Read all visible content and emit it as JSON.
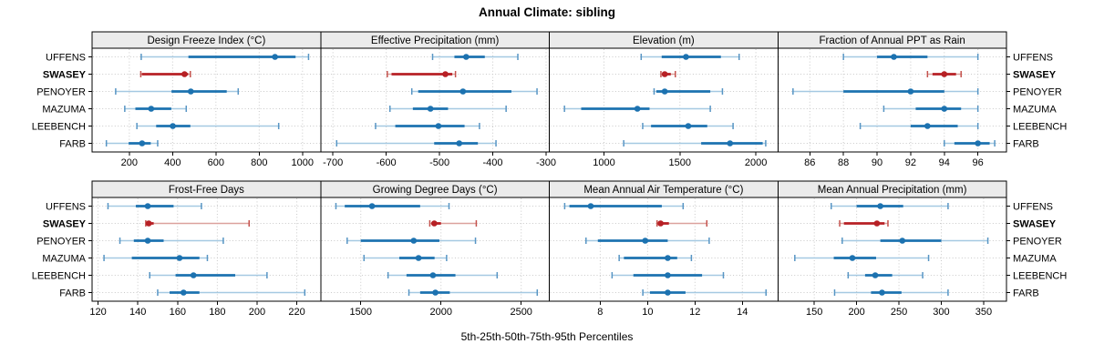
{
  "title": "Annual Climate: sibling",
  "xlabel": "5th-25th-50th-75th-95th Percentiles",
  "sites": [
    "UFFENS",
    "SWASEY",
    "PENOYER",
    "MAZUMA",
    "LEEBENCH",
    "FARB"
  ],
  "highlight_site": "SWASEY",
  "colors": {
    "background": "#ffffff",
    "normal": "#1c72b0",
    "normal_light": "#a5c9e2",
    "normal_cap": "#5795c4",
    "highlight": "#b72025",
    "highlight_light": "#dba19d",
    "highlight_cap": "#c4524d",
    "strip_bg": "#ebebeb",
    "grid": "#c9c9c9",
    "border": "#000000"
  },
  "chart_data": {
    "type": "dotplot-percentiles",
    "layout_rows": 2,
    "layout_cols": 4,
    "percentiles": [
      5,
      25,
      50,
      75,
      95
    ],
    "legend": "5th-25th-50th-75th-95th Percentiles",
    "sites": [
      "UFFENS",
      "SWASEY",
      "PENOYER",
      "MAZUMA",
      "LEEBENCH",
      "FARB"
    ],
    "panels": [
      {
        "title": "Design Freeze Index (°C)",
        "xlim": [
          28,
          1084
        ],
        "ticks": [
          200,
          400,
          600,
          800,
          1000
        ],
        "values": [
          [
            255,
            473,
            873,
            968,
            1028
          ],
          [
            253,
            258,
            455,
            472,
            482
          ],
          [
            137,
            395,
            484,
            650,
            703
          ],
          [
            179,
            228,
            301,
            394,
            463
          ],
          [
            235,
            324,
            401,
            482,
            890
          ],
          [
            94,
            197,
            259,
            299,
            331
          ]
        ]
      },
      {
        "title": "Effective Precipitation (mm)",
        "xlim": [
          -723,
          -294
        ],
        "ticks": [
          -700,
          -600,
          -500,
          -400,
          -300
        ],
        "values": [
          [
            -513,
            -472,
            -450,
            -415,
            -353
          ],
          [
            -598,
            -590,
            -489,
            -476,
            -470
          ],
          [
            -552,
            -540,
            -456,
            -365,
            -317
          ],
          [
            -593,
            -550,
            -517,
            -484,
            -375
          ],
          [
            -620,
            -583,
            -502,
            -453,
            -425
          ],
          [
            -693,
            -510,
            -463,
            -428,
            -394
          ]
        ]
      },
      {
        "title": "Elevation (m)",
        "xlim": [
          640,
          2145
        ],
        "ticks": [
          1000,
          1500,
          2000
        ],
        "values": [
          [
            1245,
            1380,
            1540,
            1770,
            1890
          ],
          [
            1375,
            1385,
            1400,
            1440,
            1470
          ],
          [
            1330,
            1345,
            1400,
            1700,
            1780
          ],
          [
            740,
            850,
            1220,
            1300,
            1700
          ],
          [
            1255,
            1310,
            1555,
            1680,
            1850
          ],
          [
            1130,
            1640,
            1830,
            2045,
            2065
          ]
        ]
      },
      {
        "title": "Fraction of Annual PPT as Rain",
        "xlim": [
          84.1,
          97.7
        ],
        "ticks": [
          86,
          88,
          90,
          92,
          94,
          96
        ],
        "values": [
          [
            88,
            90,
            91,
            93,
            96
          ],
          [
            93,
            93.3,
            94,
            94.7,
            95
          ],
          [
            85,
            88,
            92,
            94,
            96
          ],
          [
            90.4,
            92.3,
            94,
            95,
            96
          ],
          [
            89,
            92,
            93,
            94.8,
            96
          ],
          [
            94,
            94.6,
            96,
            96.7,
            97
          ]
        ]
      },
      {
        "title": "Frost-Free Days",
        "xlim": [
          117,
          232
        ],
        "ticks": [
          120,
          140,
          160,
          180,
          200,
          220
        ],
        "values": [
          [
            125,
            139,
            145,
            158,
            172
          ],
          [
            144,
            144.5,
            145.5,
            148,
            196
          ],
          [
            131,
            138,
            145,
            153,
            183
          ],
          [
            123,
            137,
            161,
            171,
            175
          ],
          [
            146,
            159,
            168,
            189,
            205
          ],
          [
            150,
            156,
            163,
            171,
            224
          ]
        ]
      },
      {
        "title": "Growing Degree Days (°C)",
        "xlim": [
          1250,
          2675
        ],
        "ticks": [
          1500,
          2000,
          2500
        ],
        "values": [
          [
            1345,
            1400,
            1570,
            1870,
            2050
          ],
          [
            1930,
            1940,
            1958,
            2000,
            2220
          ],
          [
            1415,
            1500,
            1830,
            1990,
            2215
          ],
          [
            1520,
            1740,
            1860,
            1960,
            2035
          ],
          [
            1670,
            1785,
            1950,
            2090,
            2350
          ],
          [
            1800,
            1870,
            1965,
            2055,
            2600
          ]
        ]
      },
      {
        "title": "Mean Annual Air Temperature (°C)",
        "xlim": [
          5.85,
          15.5
        ],
        "ticks": [
          8,
          10,
          12,
          14
        ],
        "values": [
          [
            6.5,
            6.7,
            7.6,
            10.6,
            11.5
          ],
          [
            10.4,
            10.45,
            10.55,
            10.9,
            12.5
          ],
          [
            7.4,
            7.9,
            9.9,
            10.85,
            12.6
          ],
          [
            8.8,
            9.0,
            10.85,
            11.25,
            11.85
          ],
          [
            8.5,
            9.4,
            10.85,
            12.3,
            13.2
          ],
          [
            9.8,
            10.1,
            10.85,
            11.6,
            15.0
          ]
        ]
      },
      {
        "title": "Mean Annual Precipitation (mm)",
        "xlim": [
          107,
          377
        ],
        "ticks": [
          150,
          200,
          250,
          300,
          350
        ],
        "values": [
          [
            170,
            200,
            228,
            255,
            308
          ],
          [
            180,
            185,
            224,
            233,
            237
          ],
          [
            183,
            228,
            254,
            300,
            355
          ],
          [
            127,
            173,
            195,
            223,
            285
          ],
          [
            190,
            210,
            222,
            242,
            278
          ],
          [
            174,
            217,
            230,
            253,
            308
          ]
        ]
      }
    ]
  }
}
